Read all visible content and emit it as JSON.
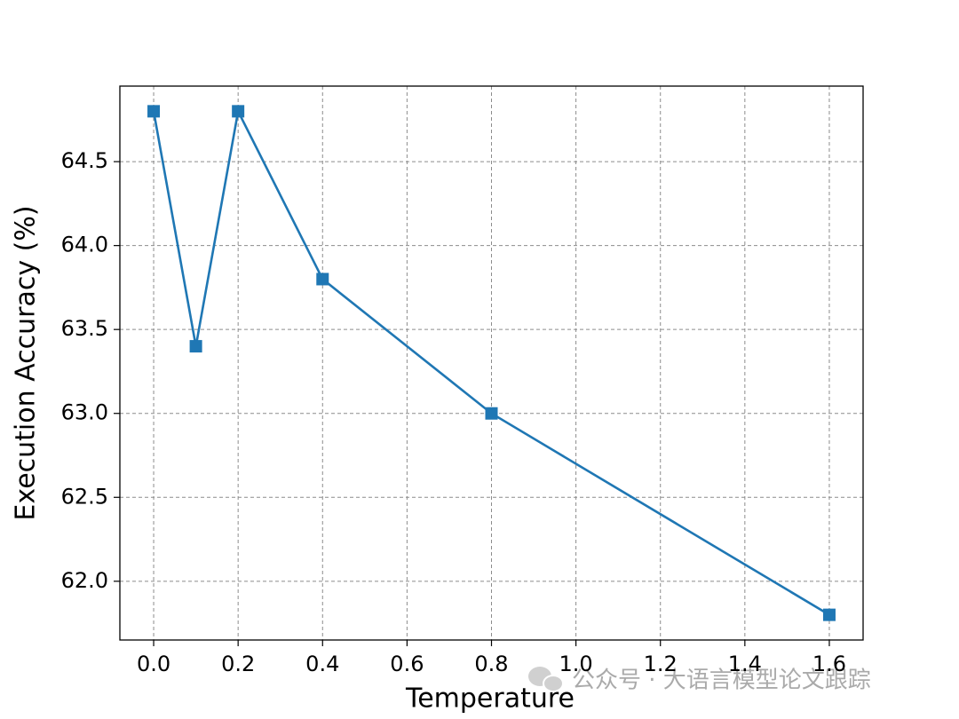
{
  "chart_data": {
    "type": "line",
    "x": [
      0.0,
      0.1,
      0.2,
      0.4,
      0.8,
      1.6
    ],
    "series": [
      {
        "color": "#1f77b4",
        "values": [
          64.8,
          63.4,
          64.8,
          63.8,
          63.0,
          61.8
        ]
      }
    ],
    "x_label": "Temperature",
    "y_label": "Execution Accuracy (%)",
    "xlim": [
      -0.08,
      1.68
    ],
    "ylim": [
      61.65,
      64.95
    ],
    "xticks": [
      {
        "value": 0,
        "label": "0.0"
      },
      0.2,
      0.4,
      0.6,
      0.8,
      {
        "value": 1,
        "label": "1.0"
      },
      1.2,
      1.4,
      1.6
    ],
    "yticks": [
      {
        "value": 62,
        "label": "62.0"
      },
      62.5,
      {
        "value": 63,
        "label": "63.0"
      },
      63.5,
      {
        "value": 64,
        "label": "64.0"
      },
      64.5
    ],
    "grid": true,
    "marker": "square",
    "watermark": "公众号 · 大语言模型论文跟踪"
  }
}
